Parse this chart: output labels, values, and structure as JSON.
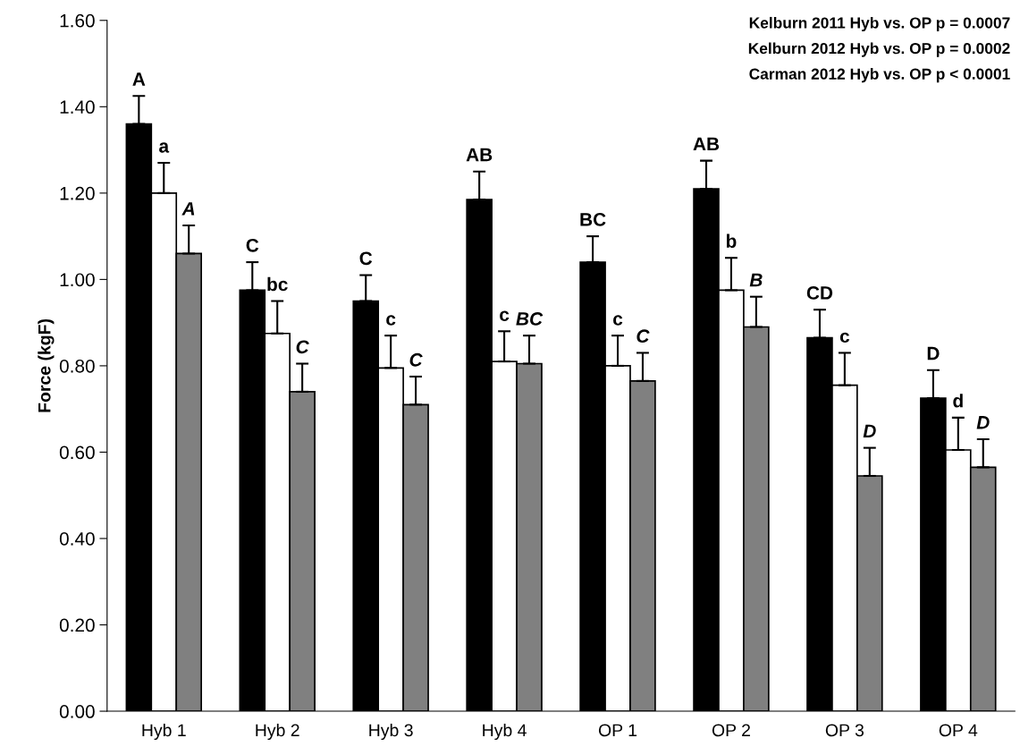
{
  "chart_data": {
    "type": "bar",
    "ylabel": "Force (kgF)",
    "categories": [
      "Hyb 1",
      "Hyb 2",
      "Hyb 3",
      "Hyb 4",
      "OP 1",
      "OP 2",
      "OP 3",
      "OP 4"
    ],
    "series": [
      {
        "color": "#000000",
        "values": [
          1.36,
          0.975,
          0.95,
          1.185,
          1.04,
          1.21,
          0.865,
          0.725
        ],
        "errors": [
          [
            1.36,
            1.425
          ],
          [
            0.975,
            1.04
          ],
          [
            0.95,
            1.01
          ],
          [
            1.185,
            1.25
          ],
          [
            1.04,
            1.1
          ],
          [
            1.21,
            1.275
          ],
          [
            0.865,
            0.93
          ],
          [
            0.725,
            0.79
          ]
        ],
        "value_labels": [
          "A",
          "C",
          "C",
          "AB",
          "BC",
          "AB",
          "CD",
          "D"
        ]
      },
      {
        "color": "#ffffff",
        "values": [
          1.2,
          0.875,
          0.795,
          0.81,
          0.8,
          0.975,
          0.755,
          0.605
        ],
        "errors": [
          [
            1.2,
            1.27
          ],
          [
            0.875,
            0.95
          ],
          [
            0.795,
            0.87
          ],
          [
            0.81,
            0.88
          ],
          [
            0.8,
            0.87
          ],
          [
            0.975,
            1.05
          ],
          [
            0.755,
            0.83
          ],
          [
            0.605,
            0.68
          ]
        ],
        "value_labels": [
          "a",
          "bc",
          "c",
          "c",
          "c",
          "b",
          "c",
          "d"
        ]
      },
      {
        "color": "#808080",
        "values": [
          1.06,
          0.74,
          0.71,
          0.805,
          0.765,
          0.89,
          0.545,
          0.565
        ],
        "errors": [
          [
            1.06,
            1.125
          ],
          [
            0.74,
            0.805
          ],
          [
            0.71,
            0.775
          ],
          [
            0.805,
            0.87
          ],
          [
            0.765,
            0.83
          ],
          [
            0.89,
            0.96
          ],
          [
            0.545,
            0.61
          ],
          [
            0.565,
            0.63
          ]
        ],
        "value_labels": [
          "A",
          "C",
          "C",
          "BC",
          "C",
          "B",
          "D",
          "D"
        ]
      }
    ],
    "ylim": [
      0,
      1.6
    ],
    "yticks": [
      {
        "value": 0,
        "label": "0.00"
      },
      {
        "value": 0.2,
        "label": "0.20"
      },
      {
        "value": 0.4,
        "label": "0.40"
      },
      {
        "value": 0.6,
        "label": "0.60"
      },
      {
        "value": 0.8,
        "label": "0.80"
      },
      {
        "value": 1.0,
        "label": "1.00"
      },
      {
        "value": 1.2,
        "label": "1.20"
      },
      {
        "value": 1.4,
        "label": "1.40"
      },
      {
        "value": 1.6,
        "label": "1.60"
      }
    ],
    "grid": false,
    "legend": false,
    "annotations": [
      "Kelburn 2011 Hyb vs. OP p = 0.0007",
      "Kelburn 2012 Hyb vs. OP p = 0.0002",
      "Carman 2012 Hyb vs. OP p < 0.0001"
    ]
  }
}
